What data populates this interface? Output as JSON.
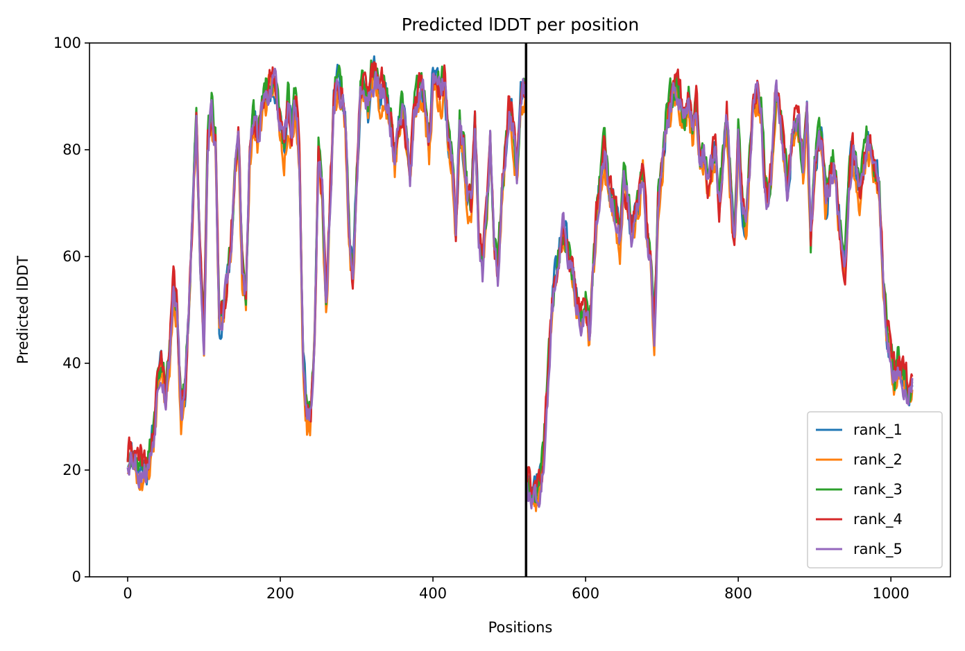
{
  "chart_data": {
    "type": "line",
    "title": "Predicted lDDT per position",
    "xlabel": "Positions",
    "ylabel": "Predicted lDDT",
    "xlim": [
      -50,
      1078
    ],
    "ylim": [
      0,
      100
    ],
    "xticks": [
      0,
      200,
      400,
      600,
      800,
      1000
    ],
    "yticks": [
      0,
      20,
      40,
      60,
      80,
      100
    ],
    "chain_break_x": 522,
    "legend_position": "lower right",
    "grid": false,
    "colors": {
      "rank_1": "#1f77b4",
      "rank_2": "#ff7f0e",
      "rank_3": "#2ca02c",
      "rank_4": "#d62728",
      "rank_5": "#9467bd",
      "chain_break": "#000000"
    },
    "base_profile_x": [
      0,
      5,
      10,
      15,
      20,
      25,
      30,
      35,
      40,
      45,
      50,
      55,
      60,
      65,
      70,
      75,
      80,
      85,
      90,
      95,
      100,
      105,
      110,
      115,
      120,
      125,
      130,
      135,
      140,
      145,
      150,
      155,
      160,
      165,
      170,
      175,
      180,
      185,
      190,
      195,
      200,
      205,
      210,
      215,
      220,
      225,
      230,
      235,
      240,
      245,
      250,
      255,
      260,
      265,
      270,
      275,
      280,
      285,
      290,
      295,
      300,
      305,
      310,
      315,
      320,
      325,
      330,
      335,
      340,
      345,
      350,
      355,
      360,
      365,
      370,
      375,
      380,
      385,
      390,
      395,
      400,
      405,
      410,
      415,
      420,
      425,
      430,
      435,
      440,
      445,
      450,
      455,
      460,
      465,
      470,
      475,
      480,
      485,
      490,
      495,
      500,
      505,
      510,
      515,
      521,
      523,
      530,
      535,
      540,
      545,
      550,
      555,
      560,
      565,
      570,
      575,
      580,
      585,
      590,
      595,
      600,
      605,
      610,
      615,
      620,
      625,
      630,
      635,
      640,
      645,
      650,
      655,
      660,
      665,
      670,
      675,
      680,
      685,
      690,
      695,
      700,
      705,
      710,
      715,
      720,
      725,
      730,
      735,
      740,
      745,
      750,
      755,
      760,
      765,
      770,
      775,
      780,
      785,
      790,
      795,
      800,
      805,
      810,
      815,
      820,
      825,
      830,
      835,
      840,
      845,
      850,
      855,
      860,
      865,
      870,
      875,
      880,
      885,
      890,
      895,
      900,
      905,
      910,
      915,
      920,
      925,
      930,
      935,
      940,
      945,
      950,
      955,
      960,
      965,
      970,
      975,
      980,
      985,
      990,
      995,
      1000,
      1005,
      1010,
      1015,
      1020,
      1025,
      1028
    ],
    "base_profile_y": [
      22,
      24,
      22,
      20,
      21,
      20,
      23,
      28,
      38,
      40,
      34,
      42,
      55,
      50,
      30,
      34,
      50,
      68,
      86,
      60,
      44,
      82,
      88,
      80,
      48,
      50,
      55,
      60,
      75,
      84,
      58,
      52,
      80,
      86,
      82,
      88,
      90,
      92,
      93,
      91,
      85,
      80,
      88,
      84,
      90,
      78,
      40,
      30,
      31,
      45,
      80,
      72,
      50,
      70,
      88,
      93,
      90,
      86,
      65,
      55,
      75,
      90,
      92,
      88,
      94,
      95,
      90,
      92,
      89,
      85,
      78,
      84,
      88,
      82,
      75,
      86,
      90,
      92,
      88,
      80,
      94,
      92,
      90,
      94,
      82,
      78,
      65,
      84,
      80,
      72,
      70,
      85,
      65,
      58,
      68,
      82,
      62,
      56,
      72,
      80,
      88,
      84,
      76,
      90,
      92,
      18,
      16,
      16,
      18,
      22,
      35,
      48,
      56,
      60,
      65,
      62,
      58,
      55,
      50,
      48,
      52,
      45,
      58,
      68,
      75,
      80,
      72,
      70,
      68,
      62,
      74,
      70,
      65,
      68,
      72,
      76,
      64,
      60,
      45,
      70,
      75,
      84,
      88,
      90,
      92,
      88,
      86,
      90,
      84,
      88,
      78,
      80,
      74,
      78,
      80,
      70,
      78,
      86,
      74,
      62,
      82,
      70,
      66,
      78,
      88,
      90,
      86,
      74,
      70,
      80,
      92,
      86,
      78,
      72,
      82,
      86,
      84,
      76,
      88,
      62,
      78,
      82,
      80,
      70,
      74,
      78,
      70,
      62,
      58,
      74,
      80,
      76,
      72,
      78,
      82,
      80,
      76,
      72,
      55,
      45,
      42,
      38,
      40,
      38,
      36,
      35,
      36
    ],
    "series": [
      {
        "name": "rank_1",
        "offset": 0.0,
        "seed": 11
      },
      {
        "name": "rank_2",
        "offset": -1.6,
        "seed": 23
      },
      {
        "name": "rank_3",
        "offset": 0.9,
        "seed": 37
      },
      {
        "name": "rank_4",
        "offset": 0.6,
        "seed": 41
      },
      {
        "name": "rank_5",
        "offset": -0.4,
        "seed": 53
      }
    ]
  }
}
